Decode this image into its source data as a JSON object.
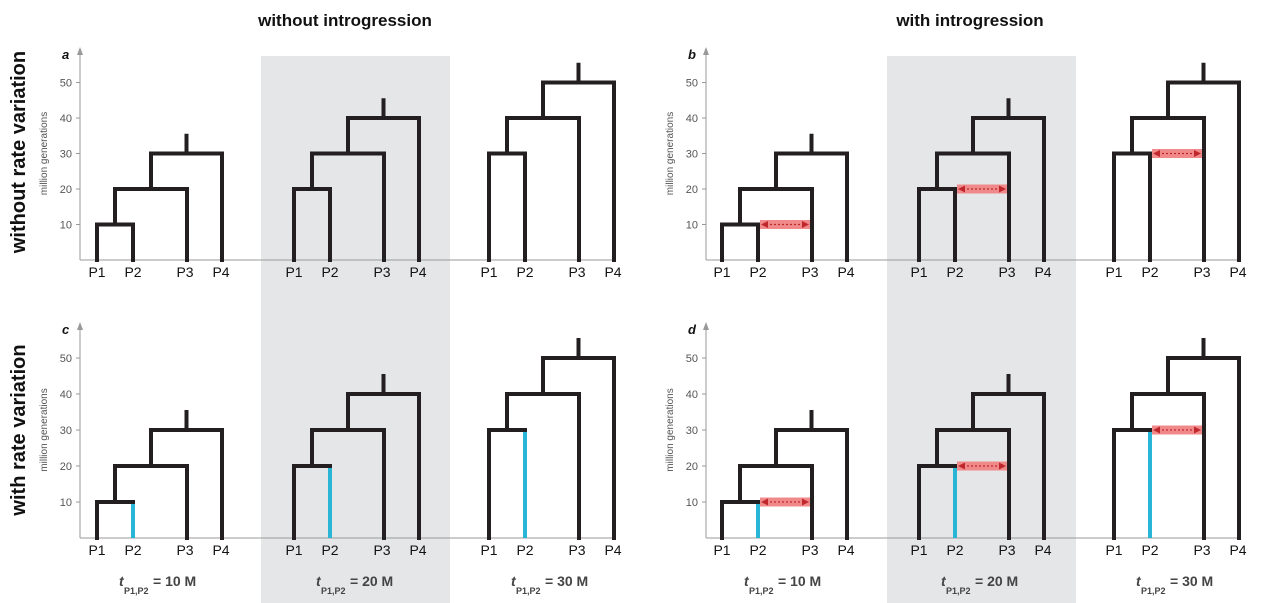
{
  "column_headers": [
    "without introgression",
    "with introgression"
  ],
  "row_headers": [
    "without rate variation",
    "with rate variation"
  ],
  "y_axis": {
    "label": "million generations",
    "ticks": [
      10,
      20,
      30,
      40,
      50
    ]
  },
  "taxa": [
    "P1",
    "P2",
    "P3",
    "P4"
  ],
  "scenarios": [
    {
      "caption_main": "t",
      "caption_sub": "P1,P2",
      "caption_value": "= 10 M",
      "split_p1p2": 10,
      "split_p3": 20,
      "split_p4": 30,
      "root": 35
    },
    {
      "caption_main": "t",
      "caption_sub": "P1,P2",
      "caption_value": "= 20 M",
      "split_p1p2": 20,
      "split_p3": 30,
      "split_p4": 40,
      "root": 45
    },
    {
      "caption_main": "t",
      "caption_sub": "P1,P2",
      "caption_value": "= 30 M",
      "split_p1p2": 30,
      "split_p3": 40,
      "split_p4": 50,
      "root": 55
    }
  ],
  "panels": [
    {
      "label": "a",
      "introgression": false,
      "rate_variation": false,
      "show_ylabel": true
    },
    {
      "label": "b",
      "introgression": true,
      "rate_variation": false,
      "show_ylabel": true
    },
    {
      "label": "c",
      "introgression": false,
      "rate_variation": true,
      "show_ylabel": true
    },
    {
      "label": "d",
      "introgression": true,
      "rate_variation": true,
      "show_ylabel": true
    }
  ],
  "colors": {
    "branch": "#231f20",
    "rate_variation": "#29b6d6",
    "introgression_band": "#f08a8a",
    "introgression_arrow": "#c0272d",
    "shade": "#e5e6e8"
  }
}
